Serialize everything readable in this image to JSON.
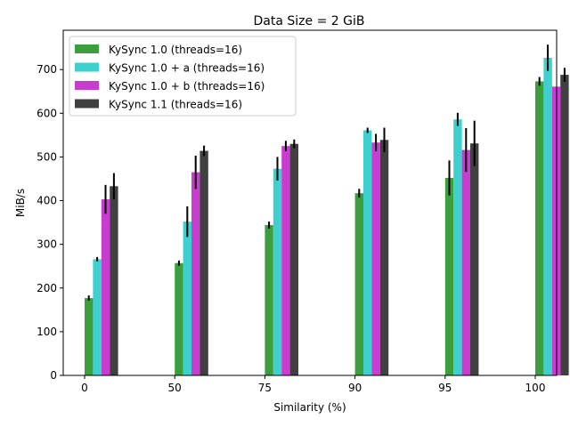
{
  "chart_data": {
    "type": "bar",
    "title": "Data Size = 2 GiB",
    "xlabel": "Similarity (%)",
    "ylabel": "MiB/s",
    "categories": [
      "0",
      "50",
      "75",
      "90",
      "95",
      "100"
    ],
    "ylim": [
      0,
      790
    ],
    "yticks": [
      0,
      100,
      200,
      300,
      400,
      500,
      600,
      700
    ],
    "grid": false,
    "legend_position": "top-left",
    "series": [
      {
        "name": "KySync 1.0 (threads=16)",
        "color": "#3d9e3d",
        "values": [
          177,
          257,
          344,
          417,
          452,
          673
        ],
        "errors": [
          6,
          6,
          8,
          10,
          40,
          10
        ]
      },
      {
        "name": "KySync 1.0 + a (threads=16)",
        "color": "#3ecfcf",
        "values": [
          266,
          352,
          473,
          561,
          586,
          727
        ],
        "errors": [
          5,
          35,
          27,
          6,
          15,
          30
        ]
      },
      {
        "name": "KySync 1.0 + b (threads=16)",
        "color": "#c83ccf",
        "values": [
          403,
          465,
          525,
          533,
          516,
          661
        ],
        "errors": [
          33,
          38,
          12,
          20,
          50,
          0
        ]
      },
      {
        "name": "KySync 1.1 (threads=16)",
        "color": "#404040",
        "values": [
          433,
          514,
          530,
          539,
          531,
          688
        ],
        "errors": [
          30,
          12,
          10,
          28,
          52,
          16
        ]
      }
    ]
  }
}
